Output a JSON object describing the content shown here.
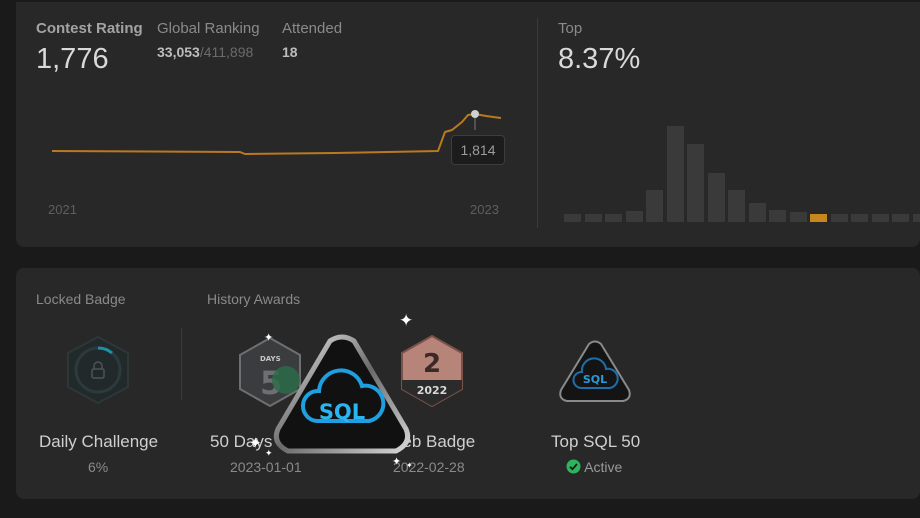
{
  "contest": {
    "rating_label": "Contest Rating",
    "rating_value": "1,776",
    "global_ranking_label": "Global Ranking",
    "global_ranking_rank": "33,053",
    "global_ranking_total": "/411,898",
    "attended_label": "Attended",
    "attended_value": "18",
    "x_axis_start": "2021",
    "x_axis_end": "2023",
    "tooltip_value": "1,814"
  },
  "top": {
    "label": "Top",
    "value": "8.37%"
  },
  "histogram": {
    "highlight_color": "#c8861e",
    "bar_color": "#3a3a3a",
    "levels": [
      0.08,
      0.08,
      0.08,
      0.11,
      0.33,
      1.0,
      0.81,
      0.51,
      0.33,
      0.2,
      0.13,
      0.1,
      0.08,
      0.08,
      0.08,
      0.08,
      0.08,
      0.08
    ],
    "highlight_index": 12
  },
  "badges": {
    "locked_title": "Locked Badge",
    "history_title": "History Awards",
    "locked": {
      "name": "Daily Challenge",
      "progress": "6%"
    },
    "awards": [
      {
        "name": "50 Days Badge",
        "date": "2023-01-01",
        "icon": "50-days-badge-icon",
        "days_text": "DAYS"
      },
      {
        "name": "Feb Badge",
        "date": "2022-02-28",
        "icon": "feb-badge-icon",
        "month_number": "2",
        "year": "2022"
      },
      {
        "name": "Top SQL 50",
        "status": "Active",
        "icon": "sql-badge-icon",
        "icon_text": "SQL"
      }
    ],
    "featured_icon_text": "SQL"
  },
  "colors": {
    "accent_orange": "#c8861e",
    "active_green": "#2db55d",
    "sql_blue": "#1ea7e1"
  }
}
